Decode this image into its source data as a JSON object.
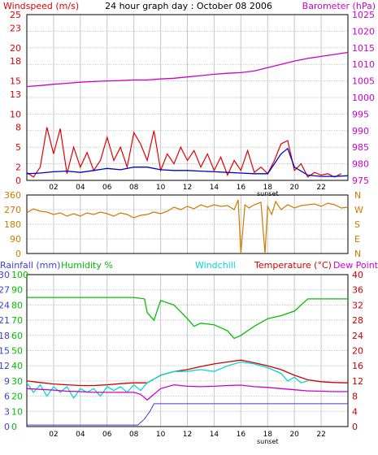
{
  "title": "24 hour graph day : October 08 2006",
  "colors": {
    "windspeed": "#e00000",
    "windavg": "#0000cc",
    "barometer": "#cc00cc",
    "winddir": "#cc7a00",
    "rainfall": "#4040cc",
    "humidity": "#00c000",
    "windchill": "#00d8d8",
    "temperature": "#cc0000",
    "dewpoint": "#cc00cc",
    "grid": "#c8c8c8",
    "frame": "#000000"
  },
  "chart_data": [
    {
      "type": "line",
      "panel": "wind-barometer",
      "left_label": "Windspeed (m/s)",
      "right_label": "Barometer (hPa)",
      "x_ticks": [
        "02",
        "04",
        "06",
        "08",
        "10",
        "12",
        "14",
        "16",
        "18",
        "20",
        "22"
      ],
      "x_marker": "sunset",
      "x_marker_hour": 18,
      "y_left_ticks": [
        0,
        2,
        5,
        8,
        10,
        13,
        15,
        18,
        20,
        23,
        25
      ],
      "y_left_range": [
        0,
        25
      ],
      "y_right_ticks": [
        975,
        980,
        985,
        990,
        995,
        1000,
        1005,
        1010,
        1015,
        1020,
        1025
      ],
      "y_right_range": [
        975,
        1025
      ],
      "grid": true,
      "series": [
        {
          "key": "barometer",
          "x": [
            0,
            1,
            2,
            3,
            4,
            5,
            6,
            7,
            8,
            9,
            10,
            11,
            12,
            13,
            14,
            15,
            16,
            17,
            18,
            19,
            20,
            21,
            22,
            23,
            24
          ],
          "values": [
            1003.3,
            1003.6,
            1004.0,
            1004.3,
            1004.6,
            1004.8,
            1005.0,
            1005.1,
            1005.3,
            1005.3,
            1005.6,
            1005.8,
            1006.2,
            1006.6,
            1007.0,
            1007.3,
            1007.5,
            1008.0,
            1009.0,
            1010.0,
            1011.0,
            1011.8,
            1012.4,
            1013.0,
            1013.6
          ]
        },
        {
          "key": "windspeed",
          "x": [
            0,
            0.5,
            1,
            1.5,
            2,
            2.5,
            3,
            3.5,
            4,
            4.5,
            5,
            5.5,
            6,
            6.5,
            7,
            7.5,
            8,
            8.5,
            9,
            9.5,
            10,
            10.5,
            11,
            11.5,
            12,
            12.5,
            13,
            13.5,
            14,
            14.5,
            15,
            15.5,
            16,
            16.5,
            17,
            17.5,
            18,
            18.5,
            19,
            19.5,
            20,
            20.5,
            21,
            21.5,
            22,
            22.5,
            23,
            23.5
          ],
          "values": [
            1.2,
            0.5,
            2.0,
            8.0,
            4.0,
            7.8,
            1.0,
            5.0,
            2.0,
            4.2,
            1.5,
            3.0,
            6.5,
            3.0,
            5.0,
            2.0,
            7.2,
            5.5,
            3.0,
            7.5,
            1.5,
            4.0,
            2.5,
            5.0,
            3.0,
            4.5,
            2.0,
            4.0,
            1.5,
            3.5,
            0.8,
            3.0,
            1.5,
            4.5,
            1.2,
            2.0,
            1.0,
            3.0,
            5.5,
            6.0,
            1.5,
            2.5,
            0.5,
            1.2,
            0.8,
            1.0,
            0.5,
            1.0
          ]
        },
        {
          "key": "windavg",
          "x": [
            0,
            1,
            2,
            3,
            4,
            5,
            6,
            7,
            8,
            9,
            10,
            11,
            12,
            13,
            14,
            15,
            16,
            17,
            18,
            19,
            19.5,
            20,
            21,
            22,
            23,
            24
          ],
          "values": [
            1.0,
            1.1,
            1.3,
            1.4,
            1.2,
            1.5,
            1.8,
            1.6,
            2.0,
            2.0,
            1.6,
            1.5,
            1.5,
            1.4,
            1.3,
            1.2,
            1.1,
            1.0,
            1.0,
            4.0,
            4.8,
            2.0,
            0.8,
            0.6,
            0.6,
            0.7
          ]
        }
      ]
    },
    {
      "type": "line",
      "panel": "wind-direction",
      "y_left_ticks": [
        0,
        90,
        180,
        270,
        360
      ],
      "y_left_range": [
        0,
        360
      ],
      "right_labels": [
        "N",
        "W",
        "S",
        "E",
        "N"
      ],
      "grid": true,
      "series": [
        {
          "key": "winddir",
          "x": [
            0,
            0.5,
            1,
            1.5,
            2,
            2.5,
            3,
            3.5,
            4,
            4.5,
            5,
            5.5,
            6,
            6.5,
            7,
            7.5,
            8,
            8.5,
            9,
            9.5,
            10,
            10.5,
            11,
            11.5,
            12,
            12.5,
            13,
            13.5,
            14,
            14.5,
            15,
            15.5,
            15.8,
            16,
            16.3,
            16.6,
            17,
            17.5,
            17.8,
            18,
            18.3,
            18.6,
            19,
            19.5,
            20,
            20.5,
            21,
            21.5,
            22,
            22.5,
            23,
            23.5,
            24
          ],
          "values": [
            250,
            275,
            260,
            255,
            240,
            250,
            230,
            245,
            230,
            250,
            240,
            255,
            245,
            230,
            250,
            240,
            220,
            235,
            240,
            255,
            245,
            260,
            285,
            270,
            290,
            275,
            300,
            285,
            300,
            290,
            295,
            270,
            330,
            0,
            300,
            280,
            300,
            315,
            0,
            290,
            240,
            320,
            270,
            300,
            280,
            295,
            300,
            305,
            290,
            310,
            300,
            280,
            285
          ]
        }
      ]
    },
    {
      "type": "line",
      "panel": "temperature-humidity",
      "labels": [
        "Rainfall (mm)",
        "Humidity %",
        "Windchill",
        "Temperature (°C)",
        "Dew Point"
      ],
      "x_ticks": [
        "02",
        "04",
        "06",
        "08",
        "10",
        "12",
        "14",
        "16",
        "18",
        "20",
        "22"
      ],
      "x_marker": "sunset",
      "x_marker_hour": 18,
      "y_rain_ticks": [
        0,
        3,
        6,
        9,
        12,
        15,
        18,
        21,
        24,
        27,
        30
      ],
      "y_rain_range": [
        0,
        30
      ],
      "y_humidity_ticks": [
        0,
        10,
        20,
        30,
        40,
        50,
        60,
        70,
        80,
        90,
        100
      ],
      "y_humidity_range": [
        0,
        100
      ],
      "y_temp_ticks": [
        0,
        4,
        8,
        12,
        16,
        20,
        24,
        28,
        32,
        36,
        40
      ],
      "y_temp_ranges": [
        0,
        40
      ],
      "grid": true,
      "series": [
        {
          "key": "humidity",
          "x": [
            0,
            1,
            2,
            3,
            4,
            5,
            6,
            7,
            8,
            8.8,
            9,
            9.5,
            10,
            11,
            12,
            12.5,
            13,
            14,
            15,
            15.5,
            16,
            17,
            18,
            19,
            20,
            21,
            22,
            23,
            24
          ],
          "values": [
            85,
            85,
            85,
            85,
            85,
            85,
            85,
            85,
            85,
            84,
            75,
            70,
            83,
            80,
            71,
            66,
            68,
            67,
            63,
            58,
            60,
            66,
            71,
            73,
            76,
            84,
            84,
            84,
            84
          ]
        },
        {
          "key": "temperature",
          "x": [
            0,
            1,
            2,
            3,
            4,
            5,
            6,
            7,
            8,
            9,
            9.5,
            10,
            11,
            12,
            13,
            14,
            15,
            16,
            17,
            18,
            19,
            20,
            21,
            22,
            23,
            24
          ],
          "values": [
            12.0,
            11.6,
            11.2,
            11.0,
            10.8,
            10.8,
            11.0,
            11.3,
            11.5,
            11.5,
            12.5,
            13.5,
            14.5,
            15.0,
            15.8,
            16.5,
            17.0,
            17.5,
            16.8,
            16.0,
            15.0,
            13.5,
            12.3,
            11.8,
            11.6,
            11.5
          ]
        },
        {
          "key": "windchill",
          "x": [
            0,
            0.5,
            1,
            1.5,
            2,
            2.5,
            3,
            3.5,
            4,
            4.5,
            5,
            5.5,
            6,
            6.5,
            7,
            7.5,
            8,
            8.5,
            9,
            9.5,
            10,
            11,
            12,
            12.5,
            13,
            14,
            15,
            16,
            17,
            18,
            19,
            19.5,
            20,
            20.5,
            21
          ],
          "values": [
            11.5,
            9.0,
            11.0,
            8.0,
            10.5,
            9.0,
            10.5,
            7.5,
            10.0,
            9.0,
            10.0,
            8.0,
            10.5,
            9.5,
            10.5,
            9.0,
            11.0,
            9.5,
            11.5,
            12.5,
            13.5,
            14.5,
            14.5,
            14.8,
            15.0,
            14.5,
            16.0,
            17.0,
            16.5,
            15.5,
            14.0,
            12.0,
            13.0,
            11.5,
            12.0
          ]
        },
        {
          "key": "dewpoint",
          "x": [
            0,
            1,
            2,
            3,
            4,
            5,
            6,
            7,
            8,
            8.5,
            9,
            9.5,
            10,
            11,
            12,
            13,
            14,
            15,
            16,
            17,
            18,
            19,
            20,
            21,
            22,
            23,
            24
          ],
          "values": [
            10.0,
            9.8,
            9.6,
            9.3,
            9.2,
            9.0,
            9.0,
            9.0,
            9.0,
            8.5,
            7.0,
            8.5,
            10.0,
            11.0,
            10.6,
            10.5,
            10.6,
            10.8,
            10.9,
            10.5,
            10.3,
            10.0,
            9.7,
            9.4,
            9.3,
            9.2,
            9.2
          ]
        },
        {
          "key": "rainfall",
          "x": [
            0,
            8.3,
            8.8,
            9.2,
            9.5,
            10,
            11,
            12,
            16,
            20,
            24
          ],
          "values": [
            0.3,
            0.3,
            1.5,
            3.0,
            4.5,
            4.5,
            4.5,
            4.5,
            4.5,
            4.5,
            4.5
          ]
        }
      ]
    }
  ]
}
